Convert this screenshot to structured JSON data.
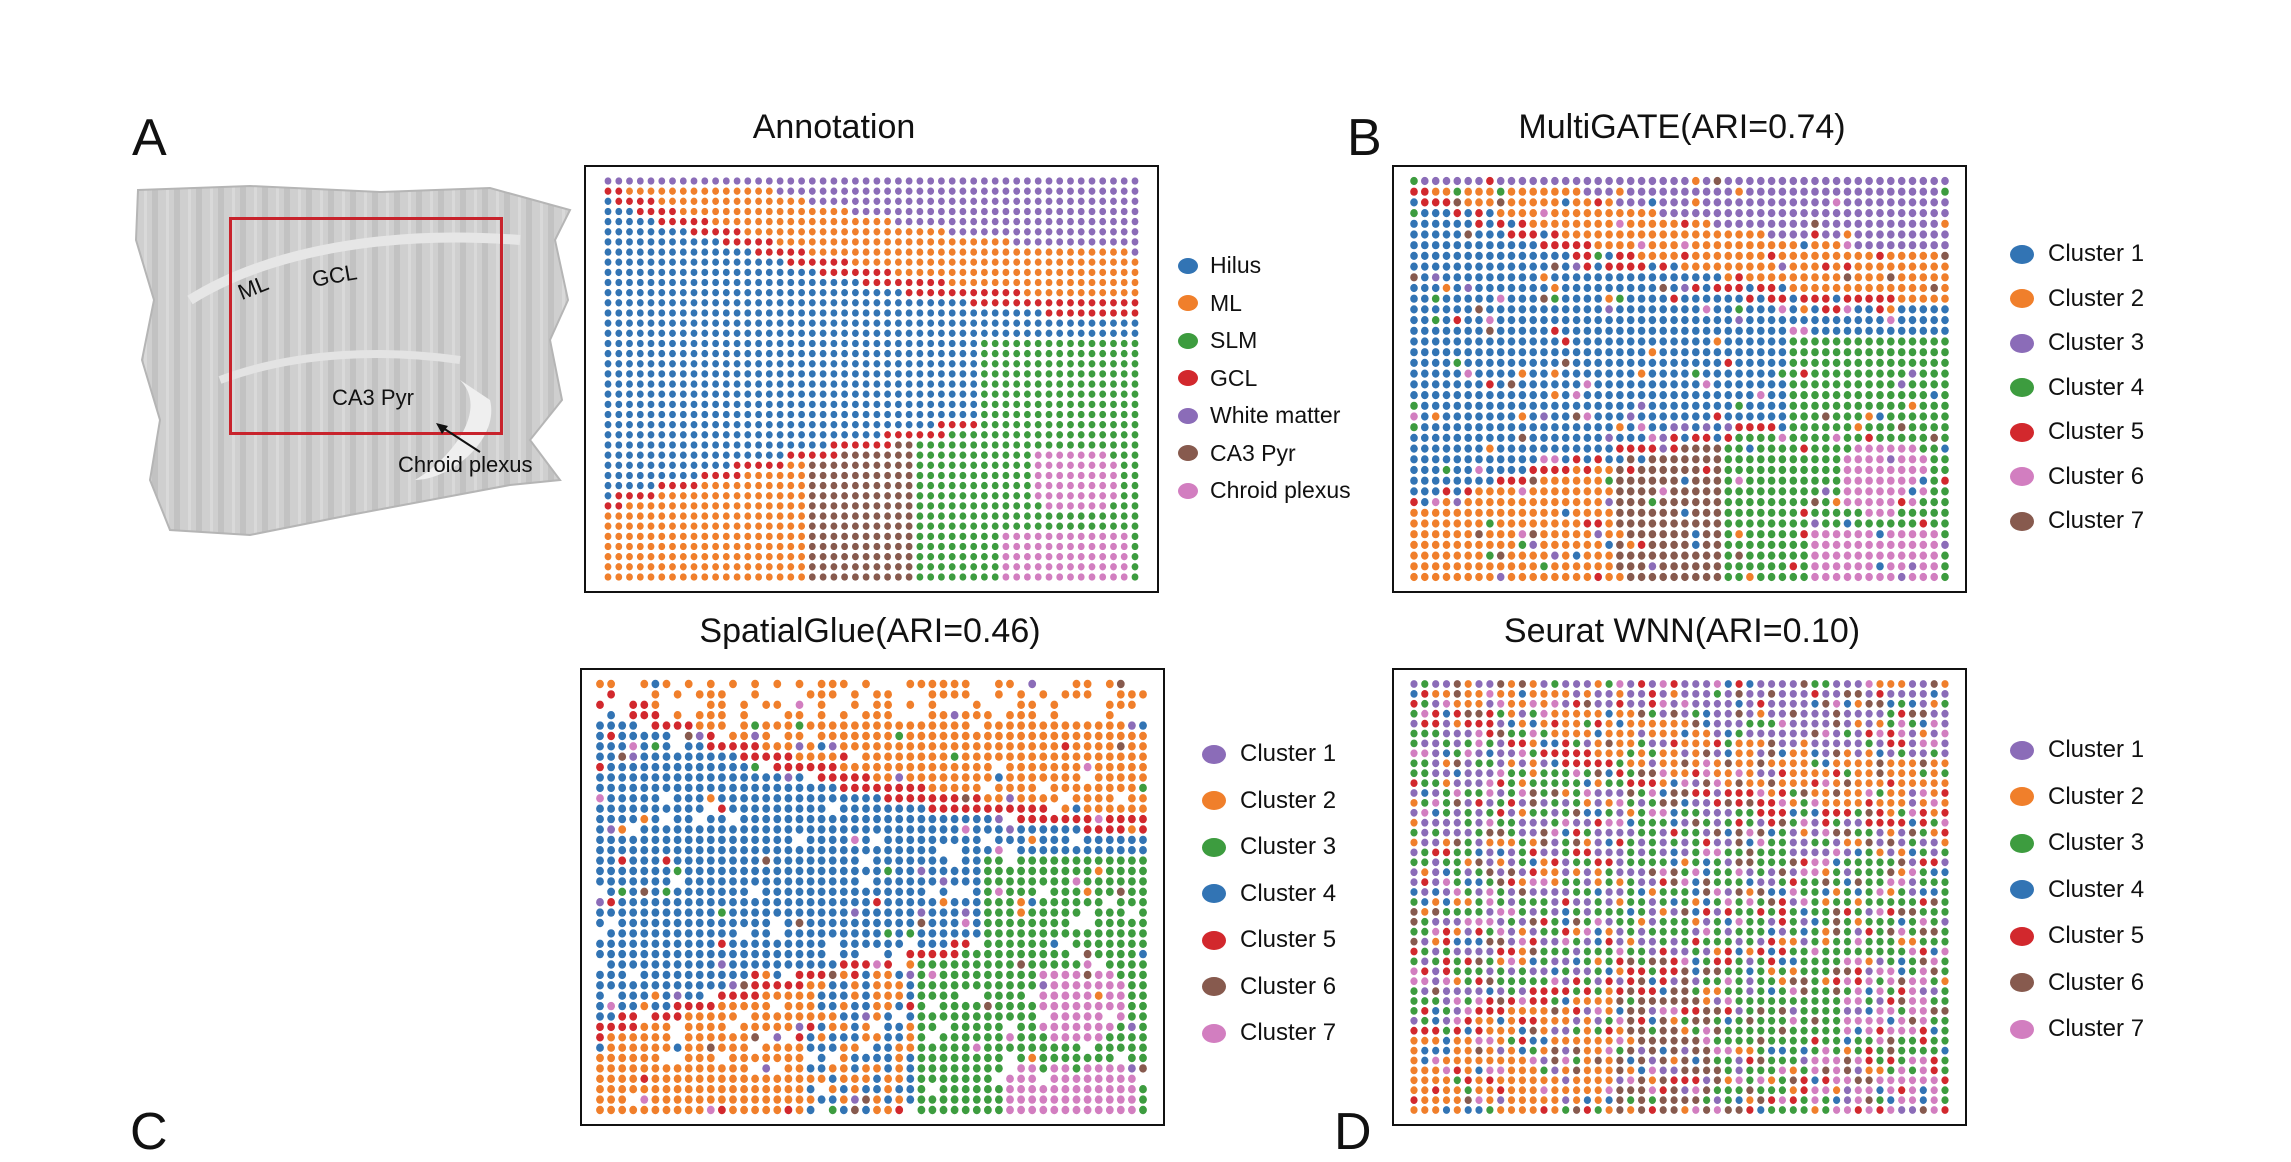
{
  "panel_letters": [
    "A",
    "B",
    "C",
    "D"
  ],
  "tissue": {
    "labels": [
      "ML",
      "GCL",
      "CA3 Pyr",
      "Chroid plexus"
    ]
  },
  "colors": {
    "blue": "#3274b4",
    "orange": "#f07f2b",
    "green": "#3d9c3f",
    "red": "#d2282d",
    "purple": "#8b6cb8",
    "brown": "#875a4e",
    "pink": "#d27ec0"
  },
  "chart_data": [
    {
      "id": "annotation",
      "type": "scatter",
      "title": "Annotation",
      "legend": [
        {
          "label": "Hilus",
          "color": "#3274b4"
        },
        {
          "label": "ML",
          "color": "#f07f2b"
        },
        {
          "label": "SLM",
          "color": "#3d9c3f"
        },
        {
          "label": "GCL",
          "color": "#d2282d"
        },
        {
          "label": "White matter",
          "color": "#8b6cb8"
        },
        {
          "label": "CA3 Pyr",
          "color": "#875a4e"
        },
        {
          "label": "Chroid plexus",
          "color": "#d27ec0"
        }
      ]
    },
    {
      "id": "multigate",
      "type": "scatter",
      "title": "MultiGATE(ARI=0.74)",
      "ari": 0.74,
      "legend": [
        {
          "label": "Cluster 1",
          "color": "#3274b4"
        },
        {
          "label": "Cluster 2",
          "color": "#f07f2b"
        },
        {
          "label": "Cluster 3",
          "color": "#8b6cb8"
        },
        {
          "label": "Cluster 4",
          "color": "#3d9c3f"
        },
        {
          "label": "Cluster 5",
          "color": "#d2282d"
        },
        {
          "label": "Cluster 6",
          "color": "#d27ec0"
        },
        {
          "label": "Cluster 7",
          "color": "#875a4e"
        }
      ]
    },
    {
      "id": "spatialglue",
      "type": "scatter",
      "title": "SpatialGlue(ARI=0.46)",
      "ari": 0.46,
      "legend": [
        {
          "label": "Cluster 1",
          "color": "#8b6cb8"
        },
        {
          "label": "Cluster 2",
          "color": "#f07f2b"
        },
        {
          "label": "Cluster 3",
          "color": "#3d9c3f"
        },
        {
          "label": "Cluster 4",
          "color": "#3274b4"
        },
        {
          "label": "Cluster 5",
          "color": "#d2282d"
        },
        {
          "label": "Cluster 6",
          "color": "#875a4e"
        },
        {
          "label": "Cluster 7",
          "color": "#d27ec0"
        }
      ]
    },
    {
      "id": "seurat",
      "type": "scatter",
      "title": "Seurat WNN(ARI=0.10)",
      "ari": 0.1,
      "legend": [
        {
          "label": "Cluster 1",
          "color": "#8b6cb8"
        },
        {
          "label": "Cluster 2",
          "color": "#f07f2b"
        },
        {
          "label": "Cluster 3",
          "color": "#3d9c3f"
        },
        {
          "label": "Cluster 4",
          "color": "#3274b4"
        },
        {
          "label": "Cluster 5",
          "color": "#d2282d"
        },
        {
          "label": "Cluster 6",
          "color": "#875a4e"
        },
        {
          "label": "Cluster 7",
          "color": "#d27ec0"
        }
      ]
    }
  ]
}
